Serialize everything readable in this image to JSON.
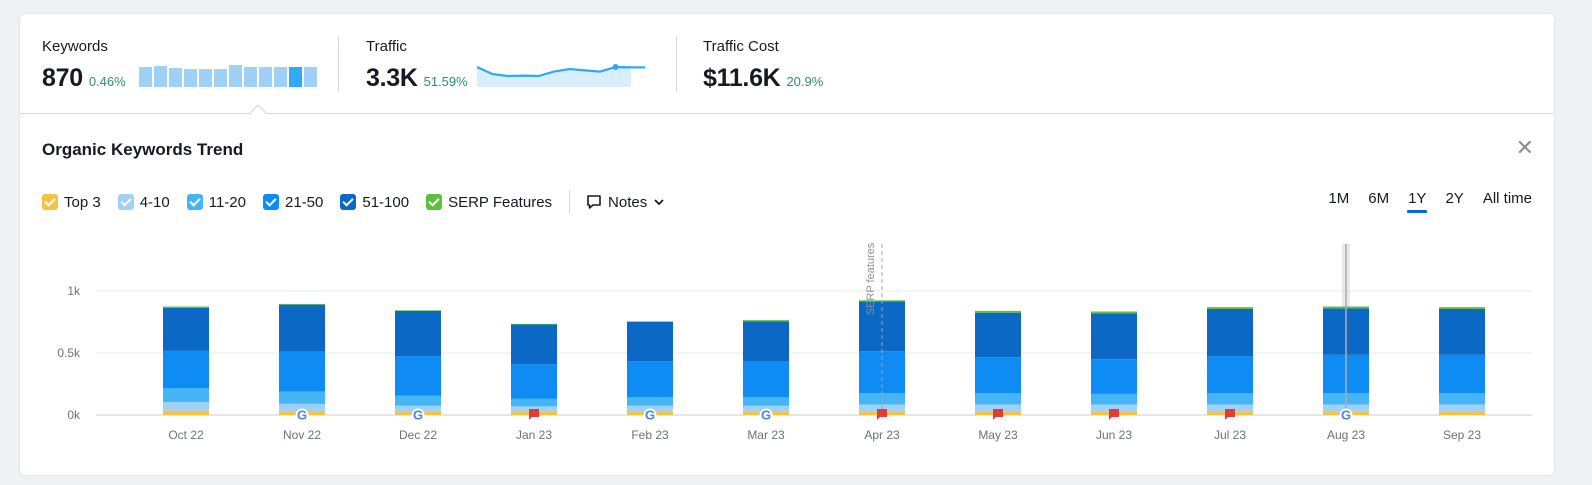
{
  "metrics": {
    "keywords": {
      "label": "Keywords",
      "value": "870",
      "delta": "0.46%",
      "sparkline": [
        0.9,
        0.95,
        0.88,
        0.8,
        0.8,
        0.82,
        1.0,
        0.9,
        0.9,
        0.92,
        0.9,
        0.9
      ],
      "active_index": 10
    },
    "traffic": {
      "label": "Traffic",
      "value": "3.3K",
      "delta": "51.59%",
      "sparkline": [
        0.95,
        0.6,
        0.5,
        0.52,
        0.5,
        0.72,
        0.85,
        0.78,
        0.72,
        0.95,
        0.93
      ]
    },
    "traffic_cost": {
      "label": "Traffic Cost",
      "value": "$11.6K",
      "delta": "20.9%"
    }
  },
  "section": {
    "title": "Organic Keywords Trend",
    "close_icon": "close-icon"
  },
  "legend": [
    {
      "label": "Top 3",
      "color": "#f5c344"
    },
    {
      "label": "4-10",
      "color": "#9fd1f7"
    },
    {
      "label": "11-20",
      "color": "#45b5f5"
    },
    {
      "label": "21-50",
      "color": "#0e8cf3"
    },
    {
      "label": "51-100",
      "color": "#0b68c4"
    },
    {
      "label": "SERP Features",
      "color": "#5cc13c"
    }
  ],
  "notes": {
    "label": "Notes",
    "icon": "note-icon"
  },
  "ranges": [
    {
      "label": "1M",
      "active": false
    },
    {
      "label": "6M",
      "active": false
    },
    {
      "label": "1Y",
      "active": true
    },
    {
      "label": "2Y",
      "active": false
    },
    {
      "label": "All time",
      "active": false
    }
  ],
  "chart_data": {
    "type": "bar",
    "stacked": true,
    "categories": [
      "Oct 22",
      "Nov 22",
      "Dec 22",
      "Jan 23",
      "Feb 23",
      "Mar 23",
      "Apr 23",
      "May 23",
      "Jun 23",
      "Jul 23",
      "Aug 23",
      "Sep 23"
    ],
    "series": [
      {
        "name": "Top 3",
        "color": "#f5c344",
        "values": [
          35,
          30,
          25,
          25,
          25,
          25,
          25,
          25,
          25,
          25,
          25,
          25
        ]
      },
      {
        "name": "4-10",
        "color": "#9fd1f7",
        "values": [
          70,
          60,
          50,
          45,
          50,
          50,
          60,
          60,
          60,
          60,
          60,
          60
        ]
      },
      {
        "name": "11-20",
        "color": "#45b5f5",
        "values": [
          110,
          100,
          80,
          60,
          70,
          70,
          90,
          90,
          85,
          90,
          90,
          90
        ]
      },
      {
        "name": "21-50",
        "color": "#0e8cf3",
        "values": [
          305,
          320,
          320,
          280,
          290,
          285,
          340,
          290,
          280,
          300,
          310,
          310
        ]
      },
      {
        "name": "51-100",
        "color": "#0b68c4",
        "values": [
          345,
          380,
          365,
          320,
          315,
          325,
          400,
          360,
          370,
          380,
          375,
          370
        ]
      },
      {
        "name": "SERP Features",
        "color": "#5cc13c",
        "values": [
          10,
          5,
          5,
          5,
          5,
          10,
          10,
          15,
          15,
          15,
          15,
          15
        ]
      }
    ],
    "y_ticks": [
      {
        "value": 0,
        "label": "0k"
      },
      {
        "value": 500,
        "label": "0.5k"
      },
      {
        "value": 1000,
        "label": "1k"
      }
    ],
    "ylim": [
      0,
      1400
    ],
    "markers": [
      "",
      "google",
      "google",
      "flag",
      "google",
      "google",
      "flag",
      "flag",
      "flag",
      "flag",
      "google",
      ""
    ],
    "annotation": {
      "category": "Apr 23",
      "text": "SERP features"
    },
    "hover_category": "Aug 23",
    "grid": true
  }
}
